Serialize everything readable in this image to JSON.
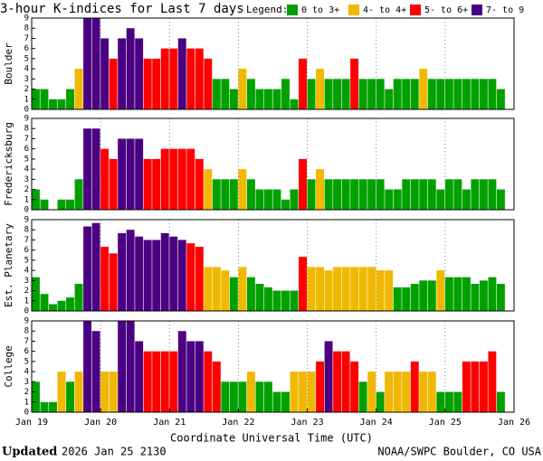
{
  "title": "3-hour K-indices for Last 7 days",
  "legend": {
    "title": "Legend:",
    "items": [
      {
        "label": "0 to 3+",
        "min": 0,
        "color": "#00a000"
      },
      {
        "label": "4- to 4+",
        "min": 4,
        "color": "#f0b800"
      },
      {
        "label": "5- to 6+",
        "min": 5,
        "color": "#ff0000"
      },
      {
        "label": "7- to 9",
        "min": 7,
        "color": "#4b0082"
      }
    ]
  },
  "footer": {
    "updated_label": "Updated",
    "updated_time": "2026 Jan 25 2130",
    "source": "NOAA/SWPC Boulder, CO USA"
  },
  "chart_data": [
    {
      "type": "bar",
      "ylabel": "Boulder",
      "ylim": [
        0,
        9
      ],
      "yticks": [
        0,
        1,
        2,
        3,
        4,
        5,
        6,
        7,
        8,
        9
      ],
      "grid": "x",
      "values": [
        2,
        2,
        1,
        1,
        2,
        4,
        9,
        9,
        7,
        5,
        7,
        8,
        7,
        5,
        5,
        6,
        6,
        7,
        6,
        6,
        5,
        3,
        3,
        2,
        4,
        3,
        2,
        2,
        2,
        3,
        1,
        5,
        3,
        4,
        3,
        3,
        3,
        5,
        3,
        3,
        3,
        2,
        3,
        3,
        3,
        4,
        3,
        3,
        3,
        3,
        3,
        3,
        3,
        3,
        2,
        0
      ]
    },
    {
      "type": "bar",
      "ylabel": "Fredericksburg",
      "ylim": [
        0,
        9
      ],
      "yticks": [
        0,
        1,
        2,
        3,
        4,
        5,
        6,
        7,
        8,
        9
      ],
      "grid": "x",
      "values": [
        2,
        1,
        0,
        1,
        1,
        3,
        8,
        8,
        6,
        5,
        7,
        7,
        7,
        5,
        5,
        6,
        6,
        6,
        6,
        5,
        4,
        3,
        3,
        3,
        4,
        3,
        2,
        2,
        2,
        1,
        2,
        5,
        3,
        4,
        3,
        3,
        3,
        3,
        3,
        3,
        3,
        2,
        2,
        3,
        3,
        3,
        3,
        2,
        3,
        3,
        2,
        3,
        3,
        3,
        2,
        0
      ]
    },
    {
      "type": "bar",
      "ylabel": "Est. Planetary",
      "ylim": [
        0,
        9
      ],
      "yticks": [
        0,
        1,
        2,
        3,
        4,
        5,
        6,
        7,
        8,
        9
      ],
      "grid": "x",
      "values": [
        3.33,
        1.67,
        0.67,
        1,
        1.33,
        2.67,
        8.33,
        8.67,
        6.33,
        5.67,
        7.67,
        8,
        7.33,
        7,
        7,
        7.67,
        7.33,
        7,
        6.67,
        6.33,
        4.33,
        4.33,
        4,
        3.33,
        4.33,
        3.33,
        2.67,
        2.33,
        2,
        2,
        2,
        5.33,
        4.33,
        4.33,
        4,
        4.33,
        4.33,
        4.33,
        4.33,
        4.33,
        4,
        4,
        2.33,
        2.33,
        2.67,
        3,
        3,
        4,
        3.33,
        3.33,
        3.33,
        2.67,
        3,
        3.33,
        2.67,
        null
      ]
    },
    {
      "type": "bar",
      "ylabel": "College",
      "ylim": [
        0,
        9
      ],
      "yticks": [
        0,
        1,
        2,
        3,
        4,
        5,
        6,
        7,
        8,
        9
      ],
      "grid": "x",
      "values": [
        3,
        1,
        1,
        4,
        3,
        4,
        9,
        8,
        4,
        4,
        9,
        9,
        7,
        6,
        6,
        6,
        6,
        8,
        7,
        7,
        6,
        5,
        3,
        3,
        3,
        4,
        3,
        3,
        2,
        2,
        4,
        4,
        4,
        5,
        7,
        6,
        6,
        5,
        3,
        4,
        2,
        4,
        4,
        4,
        5,
        4,
        4,
        2,
        2,
        2,
        5,
        5,
        5,
        6,
        2,
        0
      ],
      "xlabel": "Coordinate Universal Time (UTC)",
      "xlim": [
        0,
        7
      ],
      "xticks": [
        {
          "value": 0,
          "label": "Jan 19"
        },
        {
          "value": 1,
          "label": "Jan 20"
        },
        {
          "value": 2,
          "label": "Jan 21"
        },
        {
          "value": 3,
          "label": "Jan 22"
        },
        {
          "value": 4,
          "label": "Jan 23"
        },
        {
          "value": 5,
          "label": "Jan 24"
        },
        {
          "value": 6,
          "label": "Jan 25"
        },
        {
          "value": 7,
          "label": "Jan 26"
        }
      ]
    }
  ]
}
